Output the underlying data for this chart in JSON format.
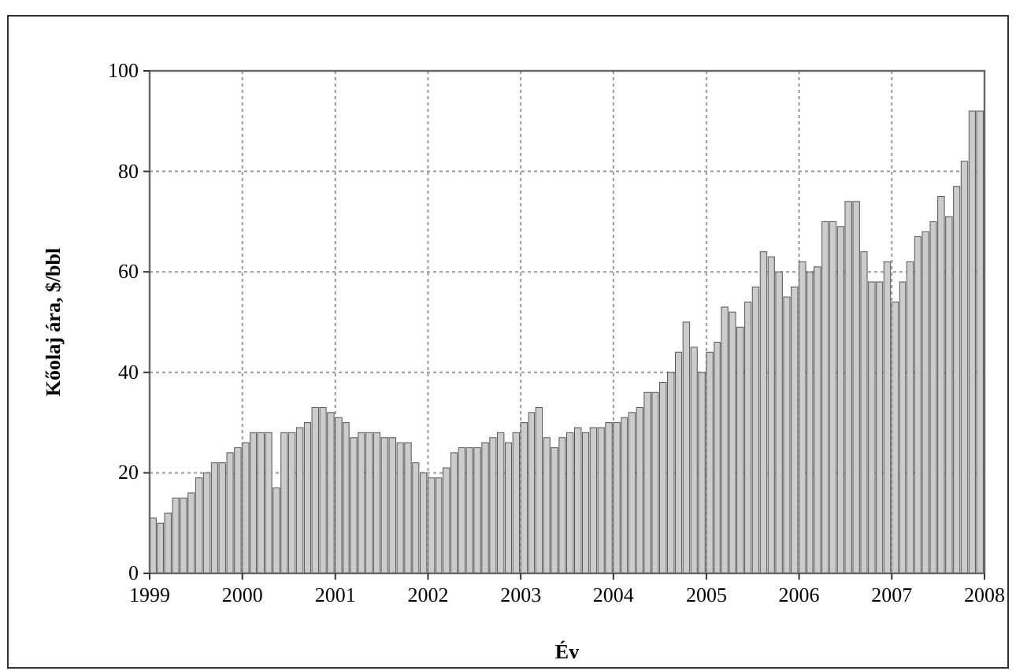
{
  "chart_data": {
    "type": "bar",
    "xlabel": "Év",
    "ylabel": "Kőolaj ára, $/bbl",
    "x": [
      "1999-01",
      "1999-02",
      "1999-03",
      "1999-04",
      "1999-05",
      "1999-06",
      "1999-07",
      "1999-08",
      "1999-09",
      "1999-10",
      "1999-11",
      "1999-12",
      "2000-01",
      "2000-02",
      "2000-03",
      "2000-04",
      "2000-05",
      "2000-06",
      "2000-07",
      "2000-08",
      "2000-09",
      "2000-10",
      "2000-11",
      "2000-12",
      "2001-01",
      "2001-02",
      "2001-03",
      "2001-04",
      "2001-05",
      "2001-06",
      "2001-07",
      "2001-08",
      "2001-09",
      "2001-10",
      "2001-11",
      "2001-12",
      "2002-01",
      "2002-02",
      "2002-03",
      "2002-04",
      "2002-05",
      "2002-06",
      "2002-07",
      "2002-08",
      "2002-09",
      "2002-10",
      "2002-11",
      "2002-12",
      "2003-01",
      "2003-02",
      "2003-03",
      "2003-04",
      "2003-05",
      "2003-06",
      "2003-07",
      "2003-08",
      "2003-09",
      "2003-10",
      "2003-11",
      "2003-12",
      "2004-01",
      "2004-02",
      "2004-03",
      "2004-04",
      "2004-05",
      "2004-06",
      "2004-07",
      "2004-08",
      "2004-09",
      "2004-10",
      "2004-11",
      "2004-12",
      "2005-01",
      "2005-02",
      "2005-03",
      "2005-04",
      "2005-05",
      "2005-06",
      "2005-07",
      "2005-08",
      "2005-09",
      "2005-10",
      "2005-11",
      "2005-12",
      "2006-01",
      "2006-02",
      "2006-03",
      "2006-04",
      "2006-05",
      "2006-06",
      "2006-07",
      "2006-08",
      "2006-09",
      "2006-10",
      "2006-11",
      "2006-12",
      "2007-01",
      "2007-02",
      "2007-03",
      "2007-04",
      "2007-05",
      "2007-06",
      "2007-07",
      "2007-08",
      "2007-09",
      "2007-10",
      "2007-11",
      "2007-12"
    ],
    "values": [
      11,
      10,
      12,
      15,
      15,
      16,
      19,
      20,
      22,
      22,
      24,
      25,
      26,
      28,
      28,
      28,
      17,
      28,
      28,
      29,
      30,
      33,
      33,
      32,
      31,
      30,
      27,
      28,
      28,
      28,
      27,
      27,
      26,
      26,
      22,
      20,
      19,
      19,
      21,
      24,
      25,
      25,
      25,
      26,
      27,
      28,
      26,
      28,
      30,
      32,
      33,
      27,
      25,
      27,
      28,
      29,
      28,
      29,
      29,
      30,
      30,
      31,
      32,
      33,
      36,
      36,
      38,
      40,
      44,
      50,
      45,
      40,
      44,
      46,
      53,
      52,
      49,
      54,
      57,
      64,
      63,
      60,
      55,
      57,
      62,
      60,
      61,
      70,
      70,
      69,
      74,
      74,
      64,
      58,
      58,
      62,
      54,
      58,
      62,
      67,
      68,
      70,
      75,
      71,
      77,
      82,
      92,
      92
    ],
    "color": "#cccccc",
    "xlim": [
      "1999",
      "2008"
    ],
    "xticks": [
      "1999",
      "2000",
      "2001",
      "2002",
      "2003",
      "2004",
      "2005",
      "2006",
      "2007",
      "2008"
    ],
    "ylim": [
      0,
      100
    ],
    "yticks": [
      0,
      20,
      40,
      60,
      80,
      100
    ],
    "grid": true
  }
}
